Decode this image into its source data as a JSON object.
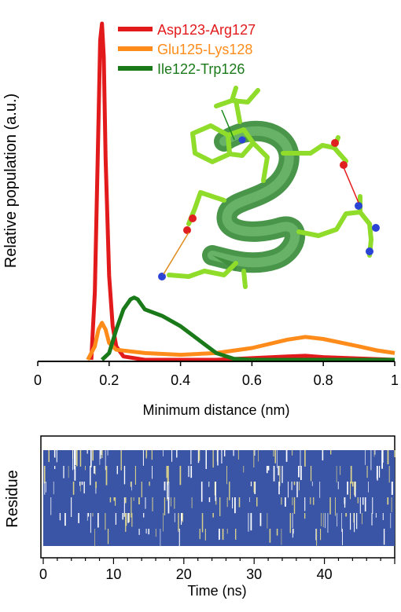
{
  "chart_data": [
    {
      "type": "line",
      "xlabel": "Minimum distance (nm)",
      "ylabel": "Relative population (a.u.)",
      "xlim": [
        0,
        1
      ],
      "ylim": [
        0,
        1
      ],
      "y_tick_labels_shown": false,
      "x_ticks": [
        0,
        0.2,
        0.4,
        0.6,
        0.8,
        1
      ],
      "x_tick_labels": [
        "0",
        "0.2",
        "0.4",
        "0.6",
        "0.8",
        "1"
      ],
      "legend_position": "top-center",
      "series": [
        {
          "name": "Asp123-Arg127",
          "color": "#e31a1c",
          "x": [
            0.15,
            0.16,
            0.17,
            0.175,
            0.18,
            0.185,
            0.19,
            0.2,
            0.21,
            0.22,
            0.24,
            0.3,
            0.5,
            0.7,
            0.75,
            0.8,
            1.0
          ],
          "y": [
            0.0,
            0.2,
            0.7,
            0.95,
            1.0,
            0.9,
            0.6,
            0.25,
            0.1,
            0.04,
            0.01,
            0.0,
            0.0,
            0.01,
            0.012,
            0.008,
            0.0
          ]
        },
        {
          "name": "Glu125-Lys128",
          "color": "#ff8c1a",
          "x": [
            0.14,
            0.16,
            0.17,
            0.18,
            0.19,
            0.2,
            0.22,
            0.3,
            0.4,
            0.5,
            0.6,
            0.7,
            0.75,
            0.8,
            0.9,
            0.95,
            1.0
          ],
          "y": [
            0.0,
            0.04,
            0.09,
            0.11,
            0.09,
            0.05,
            0.03,
            0.02,
            0.015,
            0.02,
            0.035,
            0.06,
            0.068,
            0.062,
            0.04,
            0.028,
            0.02
          ]
        },
        {
          "name": "Ile122-Trp126",
          "color": "#1a7a1a",
          "x": [
            0.18,
            0.2,
            0.22,
            0.24,
            0.26,
            0.27,
            0.28,
            0.3,
            0.35,
            0.4,
            0.45,
            0.5,
            0.55,
            0.6,
            0.7,
            1.0
          ],
          "y": [
            0.0,
            0.02,
            0.09,
            0.15,
            0.18,
            0.185,
            0.18,
            0.15,
            0.13,
            0.1,
            0.06,
            0.02,
            0.003,
            0.0,
            0.0,
            0.0
          ]
        }
      ]
    },
    {
      "type": "heatmap",
      "xlabel": "Time (ns)",
      "ylabel": "Residue",
      "xlim": [
        0,
        50
      ],
      "x_ticks": [
        0,
        10,
        20,
        30,
        40
      ],
      "x_tick_labels": [
        "0",
        "10",
        "20",
        "30",
        "40"
      ],
      "colors": {
        "helix": "#3a55a6",
        "turn": "#ffffff",
        "bend": "#d8d08a"
      }
    }
  ]
}
